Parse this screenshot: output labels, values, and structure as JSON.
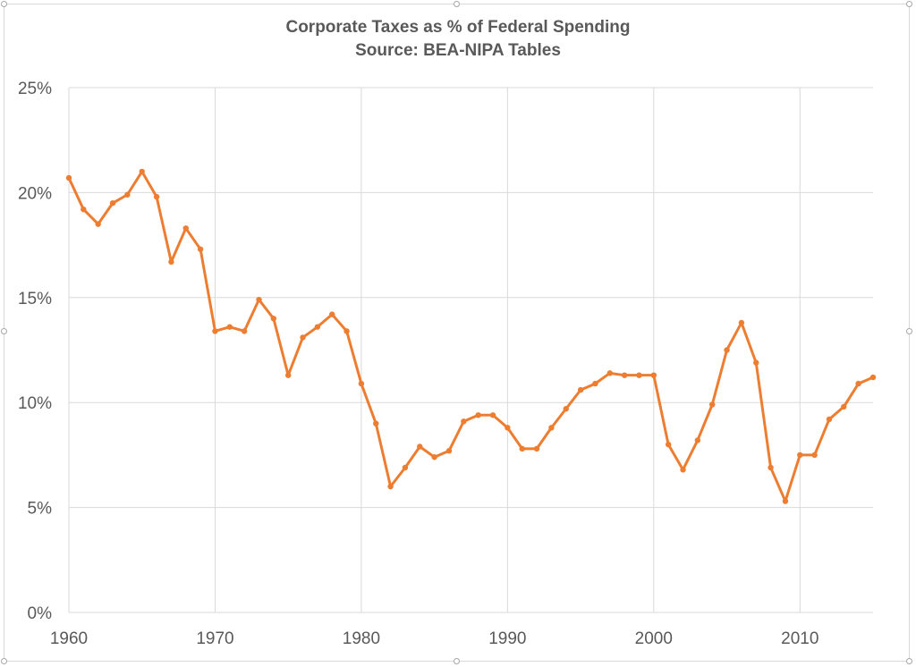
{
  "chart_data": {
    "type": "line",
    "title": "Corporate Taxes as % of Federal Spending",
    "subtitle": "Source: BEA-NIPA Tables",
    "xlabel": "",
    "ylabel": "",
    "xlim": [
      1960,
      2015
    ],
    "ylim": [
      0,
      25
    ],
    "x_ticks": [
      "1960",
      "1970",
      "1980",
      "1990",
      "2000",
      "2010"
    ],
    "y_ticks": [
      "0%",
      "5%",
      "10%",
      "15%",
      "20%",
      "25%"
    ],
    "grid": true,
    "legend": "none",
    "line_color": "#ED7D31",
    "series": [
      {
        "x": [
          1960,
          1961,
          1962,
          1963,
          1964,
          1965,
          1966,
          1967,
          1968,
          1969,
          1970,
          1971,
          1972,
          1973,
          1974,
          1975,
          1976,
          1977,
          1978,
          1979,
          1980,
          1981,
          1982,
          1983,
          1984,
          1985,
          1986,
          1987,
          1988,
          1989,
          1990,
          1991,
          1992,
          1993,
          1994,
          1995,
          1996,
          1997,
          1998,
          1999,
          2000,
          2001,
          2002,
          2003,
          2004,
          2005,
          2006,
          2007,
          2008,
          2009,
          2010,
          2011,
          2012,
          2013,
          2014,
          2015
        ],
        "values": [
          20.7,
          19.2,
          18.5,
          19.5,
          19.9,
          21.0,
          19.8,
          16.7,
          18.3,
          17.3,
          13.4,
          13.6,
          13.4,
          14.9,
          14.0,
          11.3,
          13.1,
          13.6,
          14.2,
          13.4,
          10.9,
          9.0,
          6.0,
          6.9,
          7.9,
          7.4,
          7.7,
          9.1,
          9.4,
          9.4,
          8.8,
          7.8,
          7.8,
          8.8,
          9.7,
          10.6,
          10.9,
          11.4,
          11.3,
          11.3,
          11.3,
          8.0,
          6.8,
          8.2,
          9.9,
          12.5,
          13.8,
          11.9,
          6.9,
          5.3,
          7.5,
          7.5,
          9.2,
          9.8,
          10.9,
          11.2
        ]
      }
    ]
  }
}
